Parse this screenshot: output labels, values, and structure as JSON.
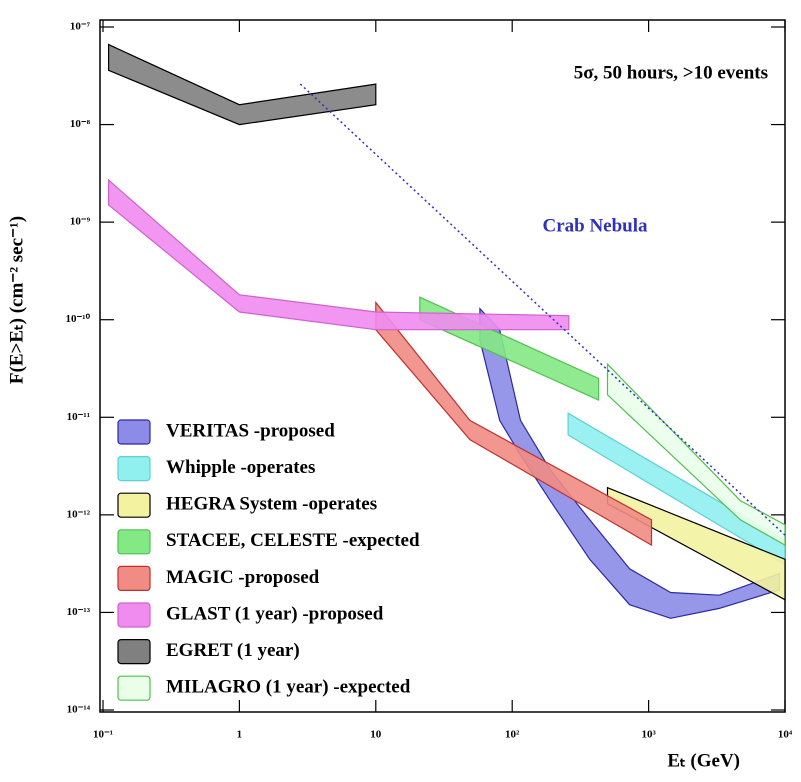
{
  "chart_data": {
    "type": "band",
    "annotation": "5σ, 50 hours, >10 events",
    "x_label": "Eₜ (GeV)",
    "y_label": "F(E>Eₜ) (cm⁻² sec⁻¹)",
    "xscale": "log",
    "yscale": "log",
    "xlim": [
      0.1,
      10000
    ],
    "ylim": [
      1e-14,
      1e-07
    ],
    "xticks": [
      {
        "value": 0.1,
        "label": "10⁻¹"
      },
      1,
      10,
      {
        "value": 100,
        "label": "10²"
      },
      {
        "value": 1000,
        "label": "10³"
      },
      {
        "value": 10000,
        "label": "10⁴"
      }
    ],
    "yticks": [
      {
        "value": 1e-14,
        "label": "10⁻¹⁴"
      },
      {
        "value": 1e-13,
        "label": "10⁻¹³"
      },
      {
        "value": 1e-12,
        "label": "10⁻¹²"
      },
      {
        "value": 1e-11,
        "label": "10⁻¹¹"
      },
      {
        "value": 1e-10,
        "label": "10⁻¹⁰"
      },
      {
        "value": 1e-09,
        "label": "10⁻⁹"
      },
      {
        "value": 1e-08,
        "label": "10⁻⁸"
      },
      {
        "value": 1e-07,
        "label": "10⁻⁷"
      }
    ],
    "legend": "lower-left",
    "series": [
      {
        "name": "VERITAS -proposed",
        "type": "band",
        "color": "#8c8ce8",
        "edge": "#2a2aa0",
        "x": [
          58,
          81,
          115,
          190,
          370,
          725,
          1450,
          3300,
          9100
        ],
        "upper": [
          1.3e-10,
          7.9e-11,
          9.3e-12,
          2.9e-12,
          8.9e-13,
          2.8e-13,
          1.6e-13,
          1.5e-13,
          2.5e-13
        ],
        "lower": [
          6.2e-11,
          9.3e-12,
          4.1e-12,
          1.4e-12,
          3.5e-13,
          1.2e-13,
          8.7e-14,
          1.1e-13,
          1.7e-13
        ]
      },
      {
        "name": "Whipple -operates",
        "type": "band",
        "color": "#90f0f0",
        "edge": "#60d0d0",
        "x": [
          257,
          10000
        ],
        "upper": [
          1.1e-11,
          5.5e-13
        ],
        "lower": [
          6.6e-12,
          3.1e-13
        ]
      },
      {
        "name": "HEGRA System  -operates",
        "type": "band",
        "color": "#f2f2a0",
        "edge": "#000000",
        "x": [
          500,
          10000
        ],
        "upper": [
          1.9e-12,
          3.5e-13
        ],
        "lower": [
          1.3e-12,
          1.35e-13
        ]
      },
      {
        "name": "STACEE, CELESTE -expected",
        "type": "band",
        "color": "#84e884",
        "edge": "#50c050",
        "x": [
          21,
          430
        ],
        "upper": [
          1.7e-10,
          2.5e-11
        ],
        "lower": [
          1e-10,
          1.5e-11
        ]
      },
      {
        "name": "MAGIC -proposed",
        "type": "band",
        "color": "#f08c84",
        "edge": "#c03030",
        "x": [
          10,
          49,
          1050
        ],
        "upper": [
          1.5e-10,
          9.3e-12,
          8.9e-13
        ],
        "lower": [
          7.9e-11,
          5.9e-12,
          4.9e-13
        ]
      },
      {
        "name": "GLAST (1 year) -proposed",
        "type": "band",
        "color": "#f08cf0",
        "edge": "#d060d0",
        "x": [
          0.11,
          1,
          10,
          260
        ],
        "upper": [
          2.7e-09,
          1.8e-10,
          1.2e-10,
          1.1e-10
        ],
        "lower": [
          1.5e-09,
          1.2e-10,
          7.9e-11,
          7.9e-11
        ]
      },
      {
        "name": "EGRET (1 year)",
        "type": "band",
        "color": "#808080",
        "edge": "#000000",
        "x": [
          0.11,
          1,
          10
        ],
        "upper": [
          6.6e-08,
          1.6e-08,
          2.6e-08
        ],
        "lower": [
          3.6e-08,
          1e-08,
          1.6e-08
        ]
      },
      {
        "name": "MILAGRO (1 year) -expected",
        "type": "band",
        "color": "#eaffea",
        "edge": "#50c050",
        "x": [
          500,
          4700,
          10000
        ],
        "upper": [
          3.5e-11,
          1.4e-12,
          7.9e-13
        ],
        "lower": [
          1.7e-11,
          8.9e-13,
          4.9e-13
        ]
      },
      {
        "name": "Crab Nebula",
        "type": "line",
        "color": "#3030c0",
        "x": [
          2.8,
          10000
        ],
        "values": [
          2.6e-08,
          6.2e-13
        ]
      }
    ]
  }
}
